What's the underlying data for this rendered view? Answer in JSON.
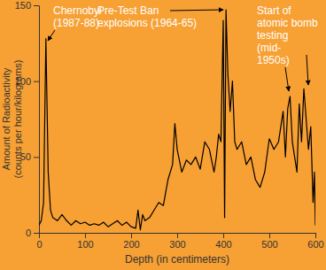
{
  "chart_data": {
    "type": "line",
    "xlabel": "Depth (in centimeters)",
    "ylabel": [
      "Amount of Radioactivity",
      "(counts per hour/kilograms)"
    ],
    "annotations": [
      {
        "text": [
          "Chernobyl",
          "(1987-88)"
        ]
      },
      {
        "text": [
          "Pre-Test Ban",
          "explosions (1964-65)"
        ]
      },
      {
        "text": [
          "Start of",
          "atomic bomb",
          "testing",
          "(mid-",
          "1950s)"
        ]
      }
    ],
    "x": [
      0,
      5,
      10,
      15,
      20,
      25,
      30,
      40,
      50,
      60,
      70,
      80,
      90,
      100,
      110,
      120,
      130,
      140,
      150,
      160,
      170,
      180,
      190,
      200,
      210,
      215,
      220,
      225,
      230,
      240,
      250,
      260,
      270,
      280,
      290,
      295,
      300,
      310,
      320,
      330,
      340,
      350,
      360,
      370,
      380,
      385,
      390,
      395,
      400,
      403,
      406,
      410,
      415,
      420,
      425,
      430,
      440,
      450,
      460,
      470,
      480,
      490,
      500,
      510,
      520,
      530,
      535,
      540,
      545,
      550,
      555,
      560,
      565,
      570,
      575,
      580,
      585,
      590,
      595,
      598,
      600
    ],
    "values": [
      5,
      8,
      20,
      128,
      40,
      15,
      10,
      8,
      12,
      8,
      5,
      8,
      6,
      7,
      5,
      6,
      5,
      7,
      4,
      6,
      8,
      5,
      7,
      4,
      3,
      15,
      2,
      12,
      8,
      10,
      15,
      20,
      18,
      35,
      45,
      72,
      55,
      40,
      48,
      45,
      50,
      42,
      60,
      55,
      40,
      50,
      65,
      60,
      140,
      10,
      147,
      105,
      80,
      100,
      60,
      55,
      60,
      45,
      50,
      35,
      30,
      40,
      62,
      55,
      60,
      80,
      50,
      82,
      90,
      60,
      50,
      40,
      85,
      60,
      95,
      75,
      55,
      70,
      20,
      40,
      5
    ],
    "color": "#000000",
    "xlim": [
      0,
      600
    ],
    "xticks": [
      0,
      100,
      200,
      300,
      400,
      500,
      600
    ],
    "ylim": [
      0,
      150
    ],
    "yticks": [
      0,
      50,
      100,
      150
    ],
    "grid": false
  }
}
